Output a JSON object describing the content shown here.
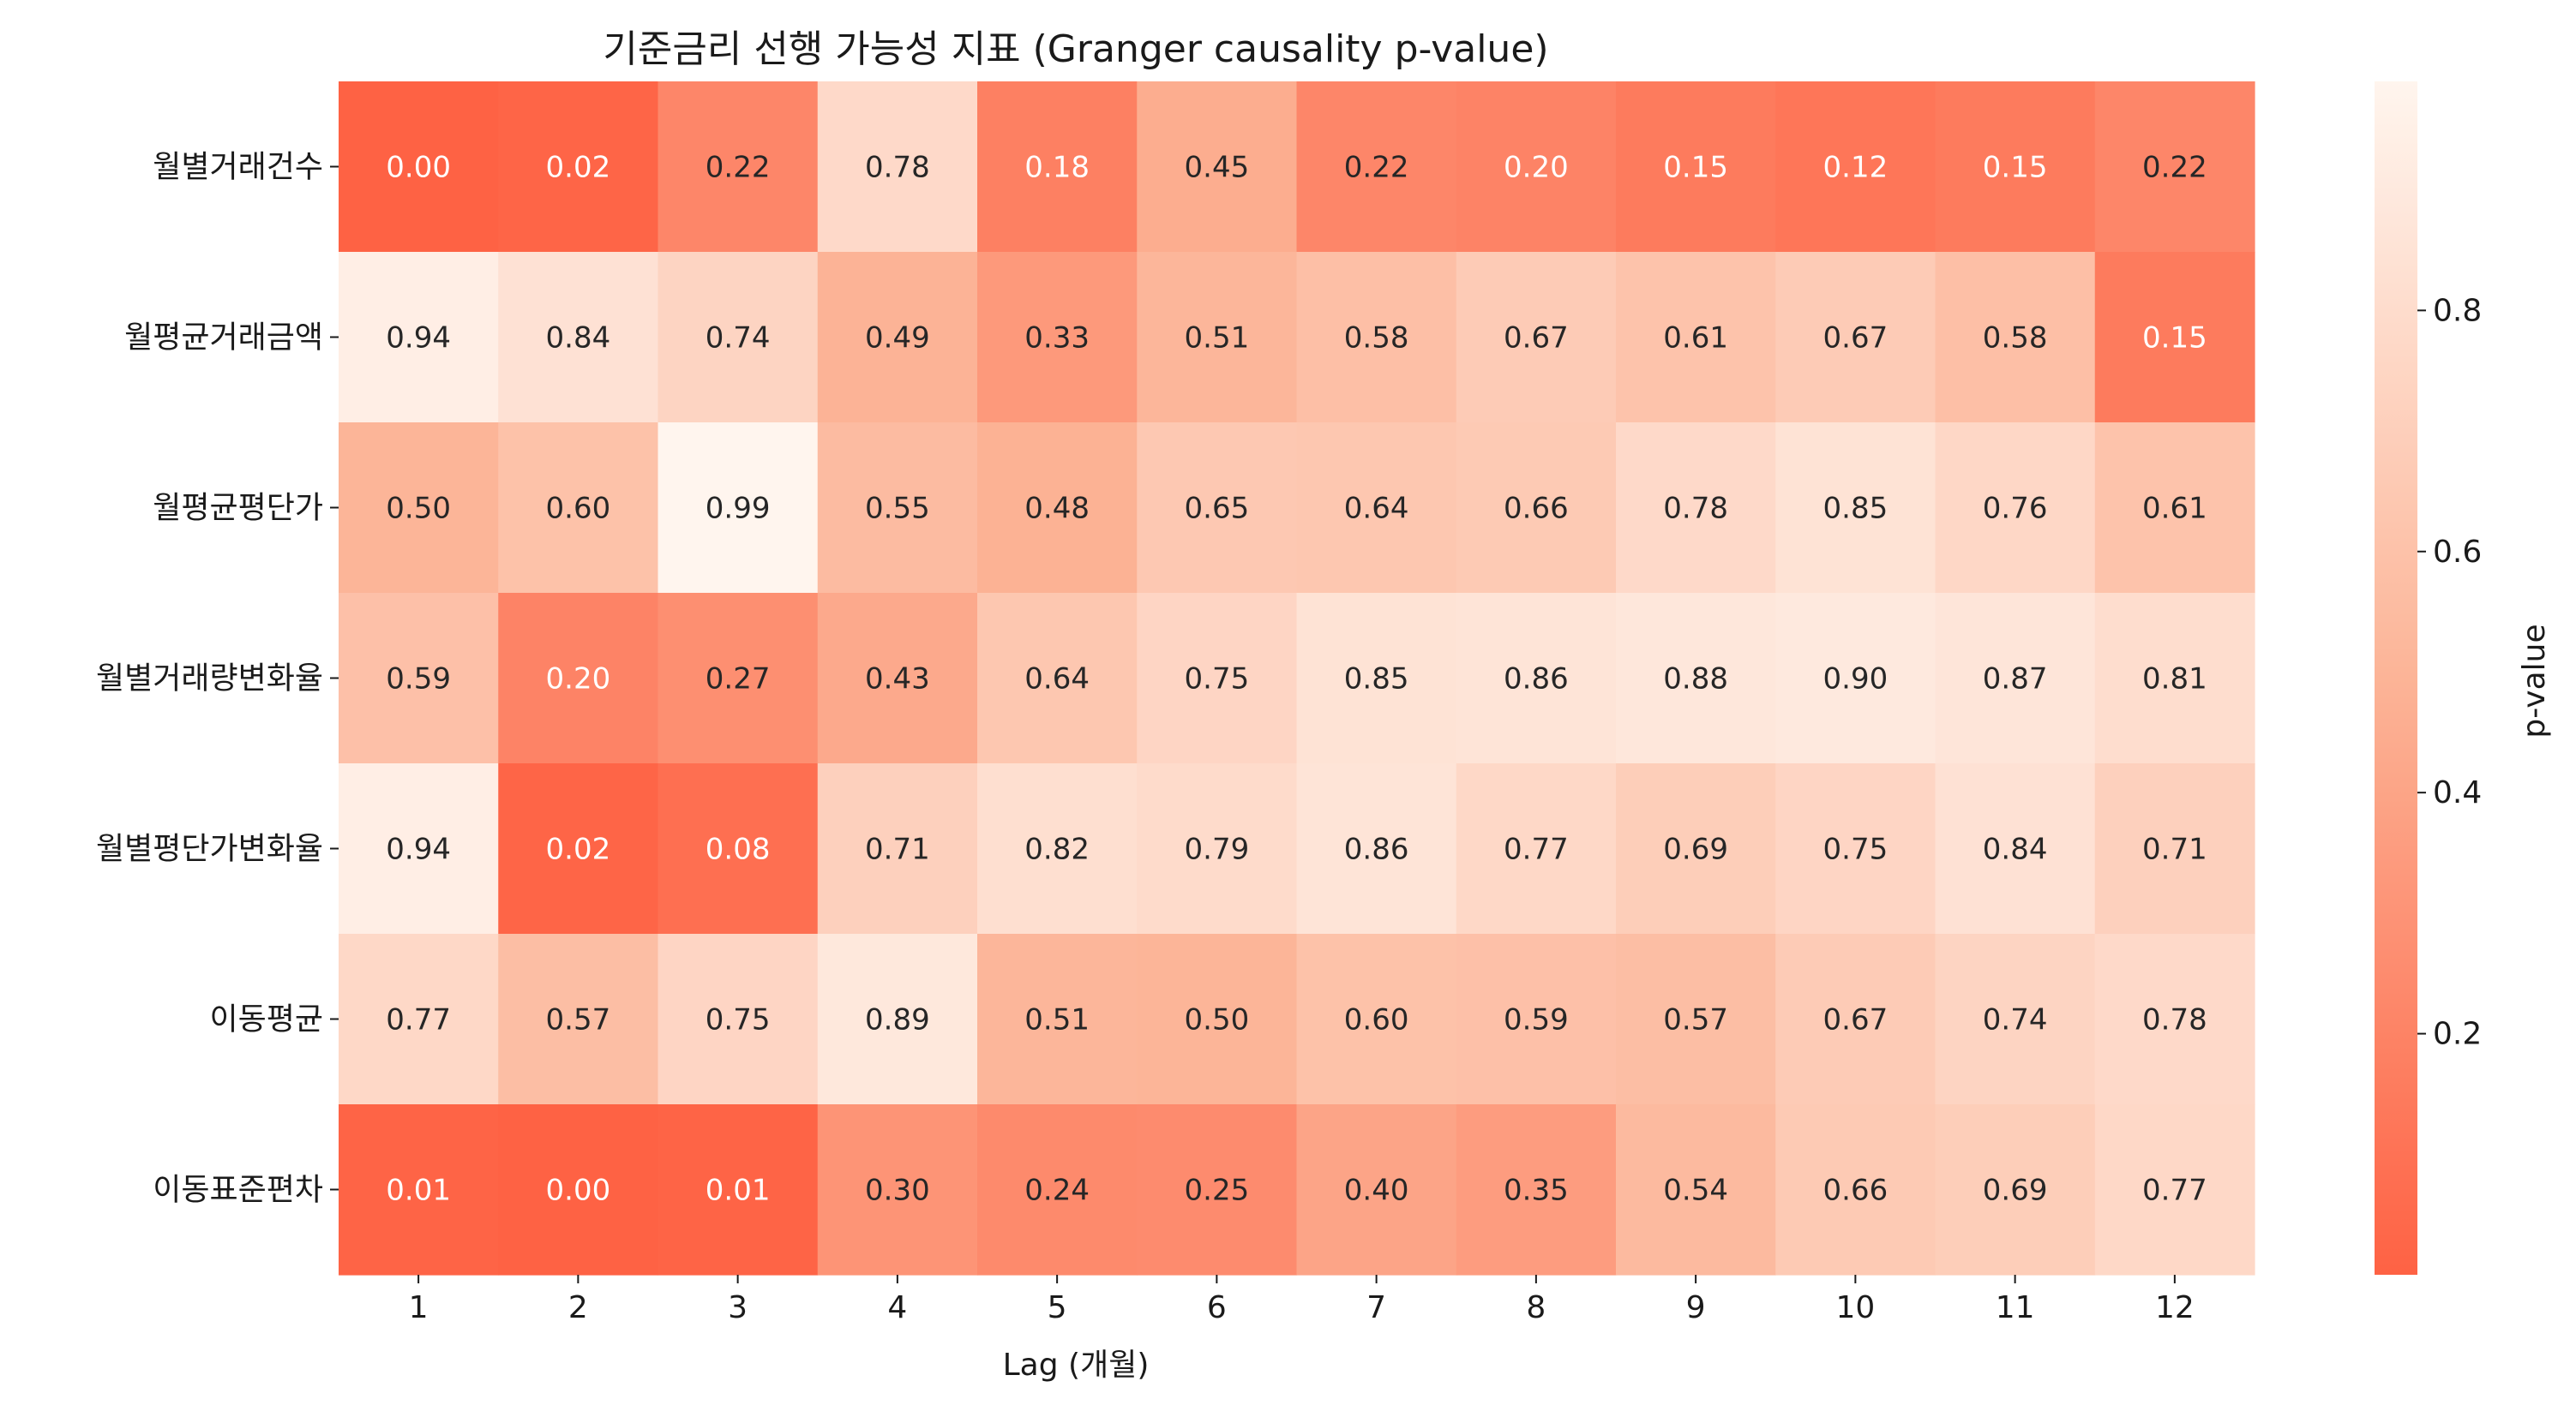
{
  "chart_data": {
    "type": "heatmap",
    "title": "기준금리 선행 가능성 지표 (Granger causality p-value)",
    "xlabel": "Lag (개월)",
    "ylabel": "",
    "x": [
      "1",
      "2",
      "3",
      "4",
      "5",
      "6",
      "7",
      "8",
      "9",
      "10",
      "11",
      "12"
    ],
    "y": [
      "월별거래건수",
      "월평균거래금액",
      "월평균평단가",
      "월별거래량변화율",
      "월별평단가변화율",
      "이동평균",
      "이동표준편차"
    ],
    "values": [
      [
        0.0,
        0.02,
        0.22,
        0.78,
        0.18,
        0.45,
        0.22,
        0.2,
        0.15,
        0.12,
        0.15,
        0.22
      ],
      [
        0.94,
        0.84,
        0.74,
        0.49,
        0.33,
        0.51,
        0.58,
        0.67,
        0.61,
        0.67,
        0.58,
        0.15
      ],
      [
        0.5,
        0.6,
        0.99,
        0.55,
        0.48,
        0.65,
        0.64,
        0.66,
        0.78,
        0.85,
        0.76,
        0.61
      ],
      [
        0.59,
        0.2,
        0.27,
        0.43,
        0.64,
        0.75,
        0.85,
        0.86,
        0.88,
        0.9,
        0.87,
        0.81
      ],
      [
        0.94,
        0.02,
        0.08,
        0.71,
        0.82,
        0.79,
        0.86,
        0.77,
        0.69,
        0.75,
        0.84,
        0.71
      ],
      [
        0.77,
        0.57,
        0.75,
        0.89,
        0.51,
        0.5,
        0.6,
        0.59,
        0.57,
        0.67,
        0.74,
        0.78
      ],
      [
        0.01,
        0.0,
        0.01,
        0.3,
        0.24,
        0.25,
        0.4,
        0.35,
        0.54,
        0.66,
        0.69,
        0.77
      ]
    ],
    "value_format": "0.00",
    "colorbar": {
      "label": "p-value",
      "ticks": [
        "0.2",
        "0.4",
        "0.6",
        "0.8"
      ],
      "range": [
        0.0,
        0.99
      ]
    },
    "colormap": {
      "low": "#fe6244",
      "mid": "#fcb497",
      "high": "#fff5ee"
    },
    "grid": false,
    "legend": "right"
  }
}
